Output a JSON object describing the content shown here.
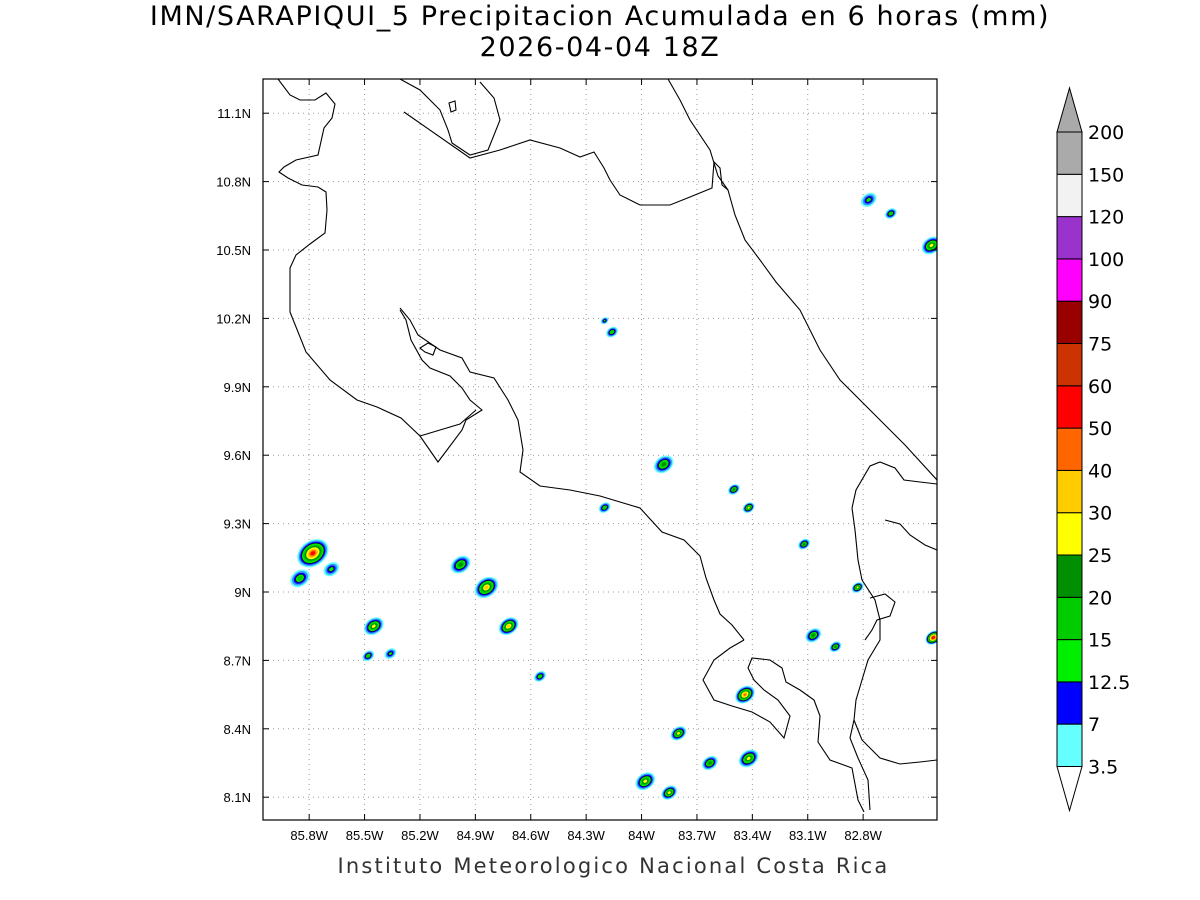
{
  "title_line1": "IMN/SARAPIQUI_5 Precipitacion Acumulada en 6 horas (mm)",
  "title_line2": "2026-04-04 18Z",
  "credit": "Instituto Meteorologico Nacional Costa Rica",
  "map": {
    "lon_range": [
      -86.05,
      -82.4
    ],
    "lat_range": [
      8.0,
      11.25
    ],
    "x_ticks": [
      {
        "lon": -85.8,
        "label": "85.8W"
      },
      {
        "lon": -85.5,
        "label": "85.5W"
      },
      {
        "lon": -85.2,
        "label": "85.2W"
      },
      {
        "lon": -84.9,
        "label": "84.9W"
      },
      {
        "lon": -84.6,
        "label": "84.6W"
      },
      {
        "lon": -84.3,
        "label": "84.3W"
      },
      {
        "lon": -84.0,
        "label": "84W"
      },
      {
        "lon": -83.7,
        "label": "83.7W"
      },
      {
        "lon": -83.4,
        "label": "83.4W"
      },
      {
        "lon": -83.1,
        "label": "83.1W"
      },
      {
        "lon": -82.8,
        "label": "82.8W"
      }
    ],
    "y_ticks": [
      {
        "lat": 11.1,
        "label": "11.1N"
      },
      {
        "lat": 10.8,
        "label": "10.8N"
      },
      {
        "lat": 10.5,
        "label": "10.5N"
      },
      {
        "lat": 10.2,
        "label": "10.2N"
      },
      {
        "lat": 9.9,
        "label": "9.9N"
      },
      {
        "lat": 9.6,
        "label": "9.6N"
      },
      {
        "lat": 9.3,
        "label": "9.3N"
      },
      {
        "lat": 9.0,
        "label": "9N"
      },
      {
        "lat": 8.7,
        "label": "8.7N"
      },
      {
        "lat": 8.4,
        "label": "8.4N"
      },
      {
        "lat": 8.1,
        "label": "8.1N"
      }
    ]
  },
  "colorbar": {
    "levels": [
      "3.5",
      "7",
      "12.5",
      "15",
      "20",
      "25",
      "30",
      "40",
      "50",
      "60",
      "75",
      "90",
      "100",
      "120",
      "150",
      "200"
    ],
    "colors": [
      "#66ffff",
      "#3399ff",
      "#0000ff",
      "#00ee00",
      "#00cc00",
      "#008f00",
      "#ffff00",
      "#ffcc00",
      "#ff6600",
      "#ff0000",
      "#cc3300",
      "#990000",
      "#ff00ff",
      "#9933cc",
      "#f2f2f2",
      "#aaaaaa"
    ]
  },
  "rain_cells": [
    {
      "lon": -85.78,
      "lat": 9.17,
      "r": 0.08,
      "level": 9
    },
    {
      "lon": -85.85,
      "lat": 9.06,
      "r": 0.05,
      "level": 4
    },
    {
      "lon": -85.68,
      "lat": 9.1,
      "r": 0.04,
      "level": 3
    },
    {
      "lon": -85.45,
      "lat": 8.85,
      "r": 0.05,
      "level": 6
    },
    {
      "lon": -85.48,
      "lat": 8.72,
      "r": 0.03,
      "level": 4
    },
    {
      "lon": -85.36,
      "lat": 8.73,
      "r": 0.03,
      "level": 3
    },
    {
      "lon": -84.98,
      "lat": 9.12,
      "r": 0.05,
      "level": 5
    },
    {
      "lon": -84.84,
      "lat": 9.02,
      "r": 0.06,
      "level": 7
    },
    {
      "lon": -84.72,
      "lat": 8.85,
      "r": 0.05,
      "level": 7
    },
    {
      "lon": -84.55,
      "lat": 8.63,
      "r": 0.03,
      "level": 4
    },
    {
      "lon": -84.2,
      "lat": 9.37,
      "r": 0.03,
      "level": 4
    },
    {
      "lon": -84.16,
      "lat": 10.14,
      "r": 0.03,
      "level": 4
    },
    {
      "lon": -84.2,
      "lat": 10.19,
      "r": 0.02,
      "level": 3
    },
    {
      "lon": -83.88,
      "lat": 9.56,
      "r": 0.05,
      "level": 5
    },
    {
      "lon": -83.5,
      "lat": 9.45,
      "r": 0.03,
      "level": 5
    },
    {
      "lon": -83.42,
      "lat": 9.37,
      "r": 0.03,
      "level": 6
    },
    {
      "lon": -83.12,
      "lat": 9.21,
      "r": 0.03,
      "level": 5
    },
    {
      "lon": -82.83,
      "lat": 9.02,
      "r": 0.03,
      "level": 6
    },
    {
      "lon": -82.42,
      "lat": 8.8,
      "r": 0.04,
      "level": 10
    },
    {
      "lon": -83.44,
      "lat": 8.55,
      "r": 0.05,
      "level": 8
    },
    {
      "lon": -83.8,
      "lat": 8.38,
      "r": 0.04,
      "level": 6
    },
    {
      "lon": -83.98,
      "lat": 8.17,
      "r": 0.05,
      "level": 6
    },
    {
      "lon": -83.85,
      "lat": 8.12,
      "r": 0.04,
      "level": 6
    },
    {
      "lon": -83.42,
      "lat": 8.27,
      "r": 0.05,
      "level": 6
    },
    {
      "lon": -83.63,
      "lat": 8.25,
      "r": 0.04,
      "level": 5
    },
    {
      "lon": -83.07,
      "lat": 8.81,
      "r": 0.04,
      "level": 5
    },
    {
      "lon": -82.95,
      "lat": 8.76,
      "r": 0.03,
      "level": 5
    },
    {
      "lon": -82.77,
      "lat": 10.72,
      "r": 0.04,
      "level": 3
    },
    {
      "lon": -82.65,
      "lat": 10.66,
      "r": 0.03,
      "level": 4
    },
    {
      "lon": -82.43,
      "lat": 10.52,
      "r": 0.05,
      "level": 6
    }
  ]
}
